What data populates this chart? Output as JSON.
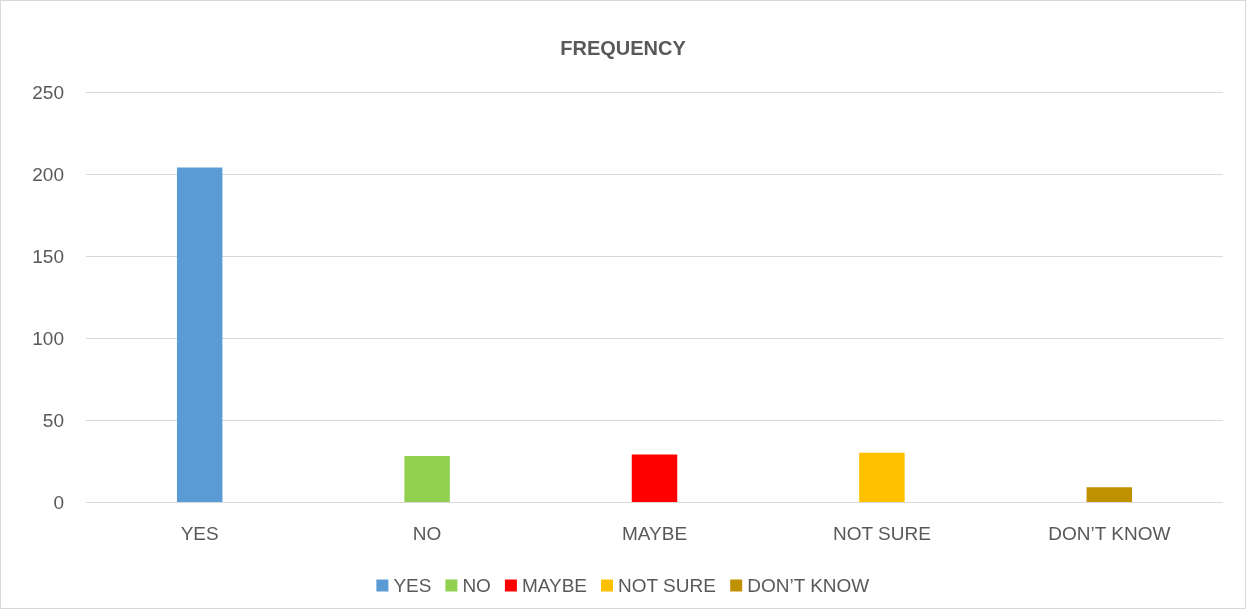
{
  "chart_data": {
    "type": "bar",
    "title": "FREQUENCY",
    "categories": [
      "YES",
      "NO",
      "MAYBE",
      "NOT SURE",
      "DON’T KNOW"
    ],
    "series": [
      {
        "name": "YES",
        "color": "#5b9bd5",
        "values": [
          204,
          null,
          null,
          null,
          null
        ]
      },
      {
        "name": "NO",
        "color": "#92d050",
        "values": [
          null,
          28,
          null,
          null,
          null
        ]
      },
      {
        "name": "MAYBE",
        "color": "#ff0000",
        "values": [
          null,
          null,
          29,
          null,
          null
        ]
      },
      {
        "name": "NOT SURE",
        "color": "#ffc000",
        "values": [
          null,
          null,
          null,
          30,
          null
        ]
      },
      {
        "name": "DON’T KNOW",
        "color": "#bf9000",
        "values": [
          null,
          null,
          null,
          null,
          9
        ]
      }
    ],
    "ylim": [
      0,
      250
    ],
    "yticks": [
      0,
      50,
      100,
      150,
      200,
      250
    ],
    "grid": "y",
    "legend": "bottom"
  }
}
